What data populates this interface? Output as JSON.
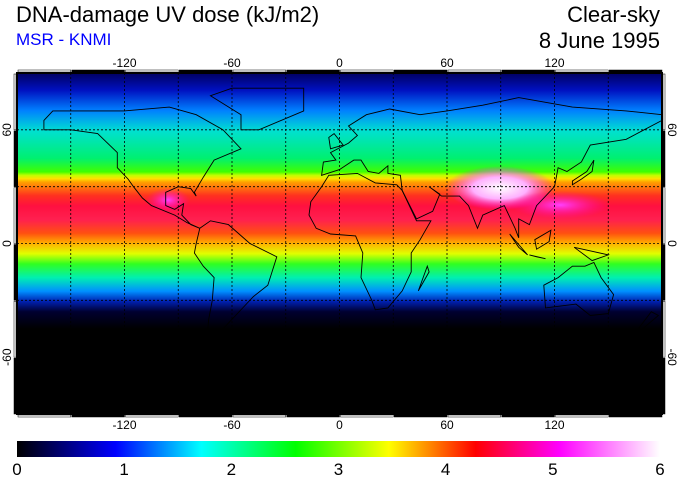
{
  "header": {
    "title": "DNA-damage UV dose (kJ/m2)",
    "subtitle": "MSR - KNMI",
    "condition": "Clear-sky",
    "date": "8 June 1995"
  },
  "map": {
    "lon_ticks": [
      "-120",
      "-60",
      "0",
      "60",
      "120"
    ],
    "lat_ticks": [
      "60",
      "0",
      "-60"
    ],
    "lon_range": [
      -180,
      180
    ],
    "lat_range": [
      -90,
      90
    ],
    "grid_spacing_deg": 30
  },
  "colorbar": {
    "min": 0,
    "max": 6,
    "tick_labels": [
      "0",
      "1",
      "2",
      "3",
      "4",
      "5",
      "6"
    ],
    "stops": [
      {
        "value": 0,
        "color": "#000000"
      },
      {
        "value": 0.92,
        "color": "#0000ff"
      },
      {
        "value": 1.72,
        "color": "#00ffff"
      },
      {
        "value": 2.6,
        "color": "#00ff00"
      },
      {
        "value": 3.47,
        "color": "#ffff00"
      },
      {
        "value": 4.28,
        "color": "#ff0000"
      },
      {
        "value": 5.06,
        "color": "#ff00ff"
      },
      {
        "value": 6,
        "color": "#ffffff"
      }
    ]
  }
}
